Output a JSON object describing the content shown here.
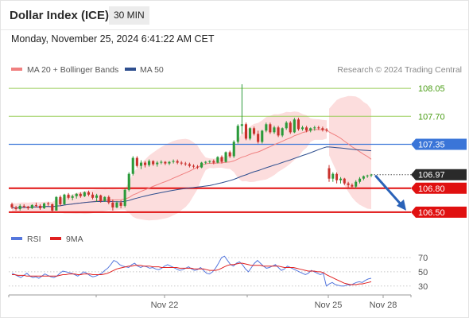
{
  "header": {
    "title": "Dollar Index (ICE)",
    "timeframe": "30 MIN",
    "datetime": "Monday, November 25, 2024 6:41:22 AM CET"
  },
  "legend": {
    "ma20": "MA 20 + Bollinger Bands",
    "ma50": "MA 50",
    "credit": "Research © 2024 Trading Central",
    "rsi": "RSI",
    "rsi_ma": "9MA"
  },
  "colors": {
    "ma20": "#f08080",
    "ma50": "#2f4f8f",
    "bollinger": "#fbd7d7",
    "up": "#2b9a3a",
    "down": "#c9312c",
    "resistance": "#9acd5a",
    "support": "#e01010",
    "current": "#3a75d8",
    "arrow": "#2a62b8",
    "rsi": "#5577dd",
    "rsi_ma": "#e02020"
  },
  "chart_data": [
    {
      "type": "candlestick",
      "yrange": [
        106.4,
        108.15
      ],
      "x_ticks": [
        "Nov 22",
        "Nov 25",
        "Nov 28"
      ],
      "levels": [
        {
          "label": "108.05",
          "value": 108.05,
          "kind": "resistance"
        },
        {
          "label": "107.70",
          "value": 107.7,
          "kind": "resistance"
        },
        {
          "label": "107.35",
          "value": 107.35,
          "kind": "current"
        },
        {
          "label": "106.97",
          "value": 106.97,
          "kind": "last"
        },
        {
          "label": "106.80",
          "value": 106.8,
          "kind": "support"
        },
        {
          "label": "106.50",
          "value": 106.5,
          "kind": "support"
        }
      ],
      "forecast": {
        "from": 106.97,
        "to": 106.5
      },
      "series": [
        {
          "segment": 1,
          "ohlc": [
            [
              106.6,
              106.62,
              106.54,
              106.56
            ],
            [
              106.56,
              106.58,
              106.52,
              106.54
            ],
            [
              106.54,
              106.6,
              106.52,
              106.58
            ],
            [
              106.58,
              106.6,
              106.55,
              106.57
            ],
            [
              106.57,
              106.58,
              106.53,
              106.55
            ],
            [
              106.55,
              106.6,
              106.54,
              106.59
            ],
            [
              106.59,
              106.62,
              106.56,
              106.58
            ],
            [
              106.58,
              106.6,
              106.53,
              106.55
            ],
            [
              106.55,
              106.62,
              106.54,
              106.61
            ],
            [
              106.61,
              106.63,
              106.58,
              106.6
            ],
            [
              106.6,
              106.61,
              106.5,
              106.52
            ],
            [
              106.52,
              106.7,
              106.52,
              106.69
            ],
            [
              106.69,
              106.71,
              106.58,
              106.6
            ],
            [
              106.6,
              106.73,
              106.59,
              106.72
            ],
            [
              106.72,
              106.74,
              106.66,
              106.68
            ],
            [
              106.68,
              106.72,
              106.65,
              106.7
            ],
            [
              106.7,
              106.74,
              106.67,
              106.73
            ],
            [
              106.73,
              106.75,
              106.68,
              106.7
            ],
            [
              106.7,
              106.76,
              106.69,
              106.75
            ],
            [
              106.75,
              106.77,
              106.7,
              106.72
            ],
            [
              106.72,
              106.75,
              106.66,
              106.68
            ],
            [
              106.68,
              106.73,
              106.63,
              106.71
            ],
            [
              106.71,
              106.72,
              106.62,
              106.64
            ],
            [
              106.64,
              106.7,
              106.63,
              106.69
            ],
            [
              106.69,
              106.71,
              106.6,
              106.62
            ],
            [
              106.62,
              106.66,
              106.52,
              106.56
            ],
            [
              106.56,
              106.64,
              106.55,
              106.62
            ],
            [
              106.62,
              106.65,
              106.55,
              106.58
            ],
            [
              106.58,
              106.8,
              106.56,
              106.78
            ],
            [
              106.78,
              107.0,
              106.76,
              106.98
            ],
            [
              106.98,
              107.2,
              106.96,
              107.18
            ],
            [
              107.18,
              107.2,
              107.06,
              107.08
            ],
            [
              107.08,
              107.15,
              107.04,
              107.12
            ],
            [
              107.12,
              107.14,
              107.06,
              107.09
            ],
            [
              107.09,
              107.16,
              107.07,
              107.14
            ],
            [
              107.14,
              107.15,
              107.08,
              107.1
            ],
            [
              107.1,
              107.14,
              107.07,
              107.12
            ],
            [
              107.12,
              107.15,
              107.1,
              107.13
            ],
            [
              107.13,
              107.14,
              107.09,
              107.11
            ],
            [
              107.11,
              107.14,
              107.09,
              107.13
            ],
            [
              107.13,
              107.16,
              107.11,
              107.14
            ],
            [
              107.14,
              107.16,
              107.1,
              107.12
            ],
            [
              107.12,
              107.14,
              107.09,
              107.11
            ],
            [
              107.11,
              107.13,
              107.08,
              107.1
            ],
            [
              107.1,
              107.12,
              107.06,
              107.08
            ],
            [
              107.08,
              107.1,
              107.05,
              107.07
            ],
            [
              107.07,
              107.09,
              107.04,
              107.06
            ],
            [
              107.06,
              107.13,
              107.05,
              107.12
            ],
            [
              107.12,
              107.14,
              107.1,
              107.13
            ],
            [
              107.13,
              107.15,
              107.11,
              107.14
            ],
            [
              107.14,
              107.16,
              107.1,
              107.12
            ],
            [
              107.12,
              107.2,
              107.11,
              107.19
            ],
            [
              107.19,
              107.21,
              107.11,
              107.13
            ],
            [
              107.13,
              107.26,
              107.12,
              107.25
            ],
            [
              107.25,
              107.27,
              107.18,
              107.2
            ],
            [
              107.2,
              107.4,
              107.18,
              107.38
            ],
            [
              107.38,
              107.6,
              107.36,
              107.58
            ],
            [
              107.58,
              108.1,
              107.48,
              107.6
            ],
            [
              107.6,
              107.62,
              107.4,
              107.42
            ],
            [
              107.42,
              107.56,
              107.4,
              107.55
            ],
            [
              107.55,
              107.57,
              107.46,
              107.48
            ],
            [
              107.48,
              107.52,
              107.36,
              107.38
            ],
            [
              107.38,
              107.53,
              107.36,
              107.52
            ],
            [
              107.52,
              107.62,
              107.5,
              107.6
            ],
            [
              107.6,
              107.62,
              107.48,
              107.5
            ],
            [
              107.5,
              107.58,
              107.48,
              107.56
            ],
            [
              107.56,
              107.58,
              107.44,
              107.46
            ],
            [
              107.46,
              107.56,
              107.44,
              107.55
            ],
            [
              107.55,
              107.64,
              107.53,
              107.62
            ],
            [
              107.62,
              107.64,
              107.48,
              107.5
            ],
            [
              107.5,
              107.68,
              107.49,
              107.66
            ],
            [
              107.66,
              107.68,
              107.52,
              107.54
            ],
            [
              107.54,
              107.58,
              107.52,
              107.56
            ],
            [
              107.56,
              107.58,
              107.5,
              107.52
            ],
            [
              107.52,
              107.56,
              107.5,
              107.55
            ],
            [
              107.55,
              107.58,
              107.52,
              107.56
            ],
            [
              107.56,
              107.58,
              107.53,
              107.55
            ],
            [
              107.55,
              107.57,
              107.51,
              107.53
            ],
            [
              107.53,
              107.55,
              107.5,
              107.52
            ]
          ]
        },
        {
          "segment": 2,
          "ohlc": [
            [
              107.05,
              107.09,
              106.88,
              106.92
            ],
            [
              106.92,
              107.0,
              106.88,
              106.98
            ],
            [
              106.98,
              107.0,
              106.86,
              106.9
            ],
            [
              106.9,
              106.94,
              106.86,
              106.92
            ],
            [
              106.92,
              106.93,
              106.84,
              106.86
            ],
            [
              106.86,
              106.88,
              106.8,
              106.84
            ],
            [
              106.84,
              106.86,
              106.8,
              106.82
            ],
            [
              106.82,
              106.9,
              106.8,
              106.88
            ],
            [
              106.88,
              106.94,
              106.86,
              106.92
            ],
            [
              106.92,
              106.96,
              106.9,
              106.95
            ],
            [
              106.95,
              106.97,
              106.93,
              106.96
            ],
            [
              106.96,
              106.98,
              106.94,
              106.97
            ]
          ]
        }
      ]
    },
    {
      "type": "line",
      "yrange": [
        22,
        80
      ],
      "y_ticks": [
        70,
        50,
        30
      ],
      "series": [
        {
          "name": "RSI",
          "values": [
            48,
            46,
            44,
            42,
            45,
            48,
            44,
            42,
            43,
            41,
            44,
            47,
            45,
            43,
            42,
            44,
            48,
            51,
            50,
            49,
            48,
            46,
            44,
            47,
            50,
            48,
            45,
            43,
            44,
            46,
            48,
            52,
            55,
            60,
            66,
            64,
            60,
            58,
            57,
            56,
            60,
            62,
            58,
            56,
            58,
            57,
            55,
            56,
            54,
            53,
            55,
            58,
            60,
            58,
            56,
            54,
            52,
            53,
            55,
            57,
            54,
            52,
            53,
            56,
            52,
            48,
            47,
            50,
            55,
            62,
            70,
            72,
            66,
            60,
            58,
            62,
            64,
            60,
            54,
            50,
            56,
            62,
            66,
            62,
            58,
            55,
            56,
            58,
            60,
            56,
            52,
            54,
            58,
            56,
            54,
            52,
            50,
            48,
            46,
            48,
            52,
            50,
            48,
            46,
            48,
            30,
            33,
            35,
            32,
            31,
            30,
            30,
            32,
            31,
            33,
            35,
            36,
            35,
            38,
            40,
            41
          ]
        },
        {
          "name": "9MA",
          "values": [
            46,
            46,
            45,
            45,
            45,
            44,
            44,
            44,
            44,
            44,
            44,
            44,
            44,
            44,
            44,
            44,
            45,
            46,
            46,
            47,
            47,
            47,
            46,
            46,
            47,
            47,
            47,
            46,
            46,
            46,
            46,
            47,
            48,
            50,
            52,
            54,
            55,
            56,
            57,
            58,
            58,
            59,
            59,
            59,
            58,
            58,
            58,
            57,
            57,
            57,
            56,
            56,
            56,
            56,
            56,
            56,
            55,
            55,
            55,
            55,
            55,
            54,
            54,
            54,
            54,
            53,
            52,
            52,
            52,
            53,
            55,
            57,
            59,
            60,
            60,
            61,
            62,
            62,
            61,
            60,
            59,
            59,
            59,
            59,
            58,
            58,
            58,
            58,
            58,
            58,
            57,
            56,
            56,
            56,
            56,
            55,
            54,
            53,
            52,
            51,
            51,
            51,
            50,
            50,
            49,
            46,
            44,
            42,
            40,
            38,
            36,
            34,
            33,
            32,
            32,
            32,
            33,
            33,
            34,
            35,
            36
          ]
        }
      ]
    }
  ]
}
